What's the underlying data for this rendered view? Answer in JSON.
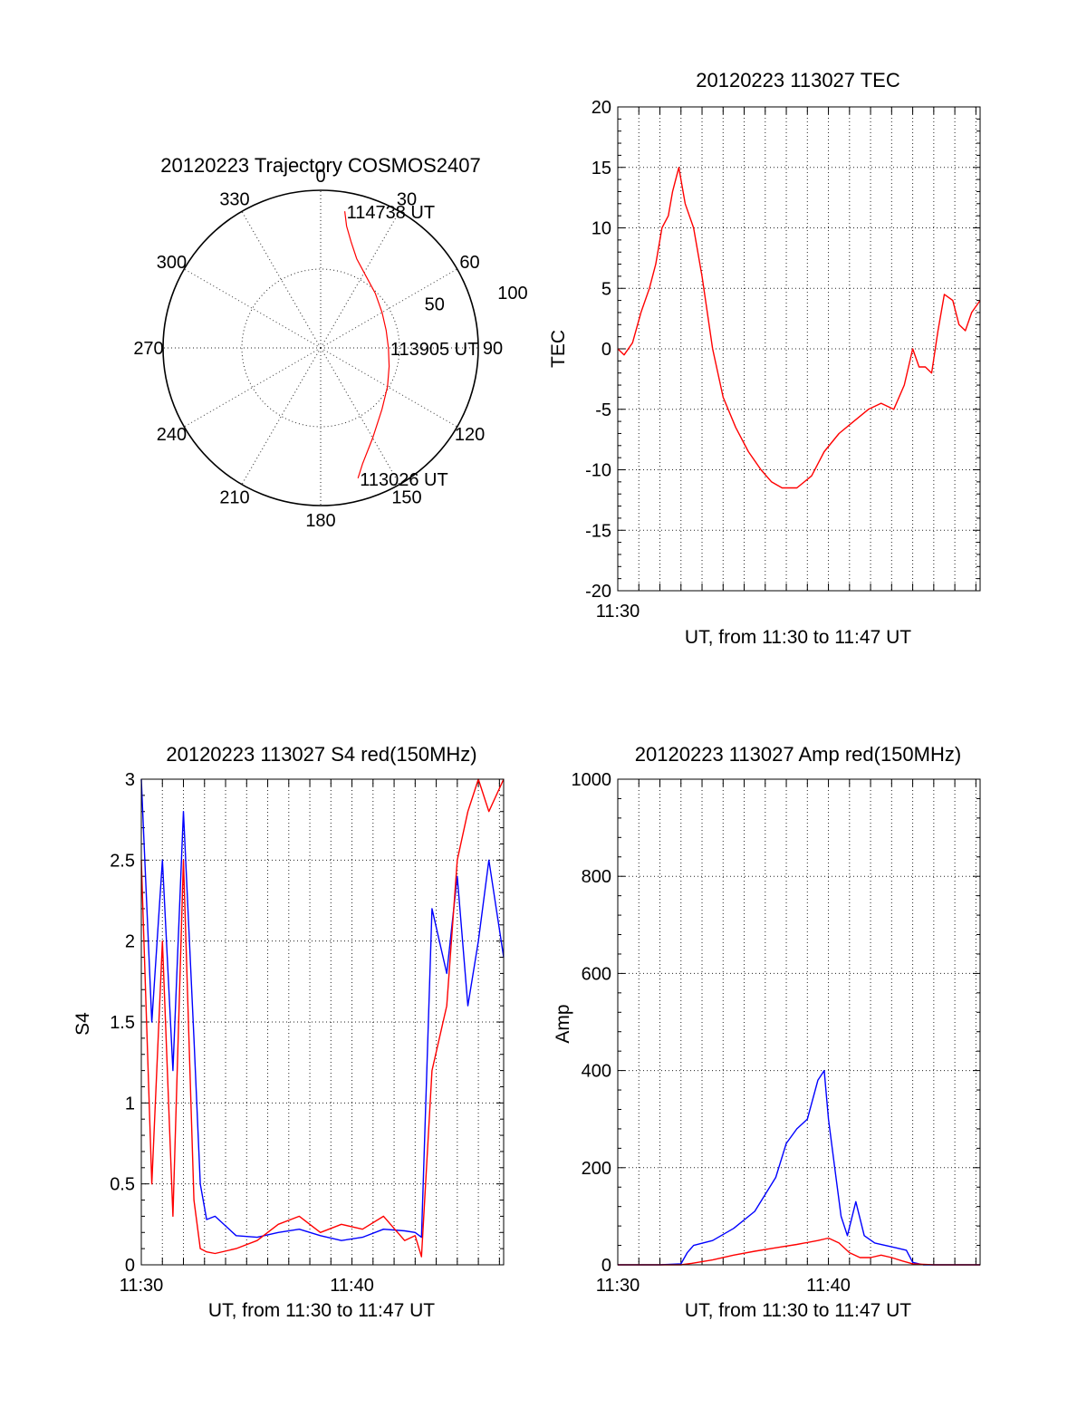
{
  "chart_data": [
    {
      "type": "polar",
      "title": "20120223 Trajectory COSMOS2407",
      "angle_ticks": [
        "0",
        "30",
        "60",
        "90",
        "120",
        "150",
        "180",
        "210",
        "240",
        "270",
        "300",
        "330"
      ],
      "radial_ticks": [
        "50",
        "100"
      ],
      "rlim": [
        0,
        100
      ],
      "series_color": "#ff0000",
      "trajectory": {
        "azimuth": [
          10,
          12,
          16,
          22,
          32,
          45,
          60,
          75,
          90,
          105,
          120,
          135,
          150,
          160,
          164
        ],
        "radius": [
          88,
          79,
          70,
          61,
          54,
          49,
          45,
          43,
          43,
          45,
          49,
          55,
          66,
          78,
          86
        ]
      },
      "annotations": [
        {
          "text": "114738 UT",
          "azimuth": 10,
          "radius": 88
        },
        {
          "text": "113905 UT",
          "azimuth": 90,
          "radius": 43
        },
        {
          "text": "113026 UT",
          "azimuth": 164,
          "radius": 86
        }
      ]
    },
    {
      "type": "line",
      "title": "20120223 113027 TEC",
      "xlabel": "UT, from 11:30 to 11:47 UT",
      "ylabel": "TEC",
      "xlim": [
        0,
        17.2
      ],
      "ylim": [
        -20,
        20
      ],
      "yticks": [
        "20",
        "15",
        "10",
        "5",
        "0",
        "-5",
        "-10",
        "-15",
        "-20"
      ],
      "xticks": [
        {
          "value": 0,
          "label": "11:30"
        }
      ],
      "series": [
        {
          "color": "#ff0000",
          "x": [
            0,
            0.3,
            0.7,
            1.1,
            1.5,
            1.8,
            2.1,
            2.4,
            2.6,
            2.9,
            3.2,
            3.6,
            4.0,
            4.5,
            5.0,
            5.6,
            6.2,
            6.8,
            7.3,
            7.8,
            8.5,
            9.2,
            9.8,
            10.5,
            11.2,
            11.9,
            12.5,
            13.1,
            13.6,
            14.0,
            14.3,
            14.6,
            14.9,
            15.2,
            15.5,
            15.9,
            16.2,
            16.5,
            16.8,
            17.2
          ],
          "y": [
            0,
            -0.5,
            0.5,
            3,
            5,
            7,
            10,
            11,
            13,
            15,
            12,
            10,
            6,
            0,
            -4,
            -6.5,
            -8.5,
            -10,
            -11,
            -11.5,
            -11.5,
            -10.5,
            -8.5,
            -7,
            -6,
            -5,
            -4.5,
            -5,
            -3,
            0,
            -1.5,
            -1.5,
            -2,
            1.5,
            4.5,
            4,
            2,
            1.5,
            3,
            4
          ]
        }
      ]
    },
    {
      "type": "line",
      "title": "20120223 113027 S4 red(150MHz)",
      "xlabel": "UT, from 11:30 to 11:47 UT",
      "ylabel": "S4",
      "xlim": [
        0,
        17.2
      ],
      "ylim": [
        0,
        3
      ],
      "yticks": [
        "3",
        "2.5",
        "2",
        "1.5",
        "1",
        "0.5",
        "0"
      ],
      "xticks": [
        {
          "value": 0,
          "label": "11:30"
        },
        {
          "value": 10,
          "label": "11:40"
        }
      ],
      "series": [
        {
          "color": "#0000ff",
          "x": [
            0,
            0.5,
            1,
            1.5,
            2,
            2.5,
            2.8,
            3.1,
            3.5,
            4.5,
            5.5,
            6.5,
            7.5,
            8.5,
            9.5,
            10.5,
            11.5,
            12.5,
            13,
            13.3,
            13.8,
            14.5,
            15,
            15.5,
            16,
            16.5,
            17.2
          ],
          "y": [
            3,
            1.5,
            2.5,
            1.2,
            2.8,
            1.4,
            0.5,
            0.28,
            0.3,
            0.18,
            0.17,
            0.2,
            0.22,
            0.18,
            0.15,
            0.17,
            0.22,
            0.21,
            0.2,
            0.17,
            2.2,
            1.8,
            2.4,
            1.6,
            2.0,
            2.5,
            1.9
          ]
        },
        {
          "color": "#ff0000",
          "x": [
            0,
            0.5,
            1,
            1.5,
            2,
            2.5,
            2.8,
            3.1,
            3.5,
            4.5,
            5.5,
            6.5,
            7.5,
            8.5,
            9.5,
            10.5,
            11.5,
            12.5,
            13,
            13.3,
            13.8,
            14.5,
            15,
            15.5,
            16,
            16.5,
            17.2
          ],
          "y": [
            2.5,
            0.5,
            2,
            0.3,
            2.5,
            0.4,
            0.1,
            0.08,
            0.07,
            0.1,
            0.15,
            0.25,
            0.3,
            0.2,
            0.25,
            0.22,
            0.3,
            0.15,
            0.18,
            0.05,
            1.2,
            1.6,
            2.5,
            2.8,
            3,
            2.8,
            3
          ]
        }
      ]
    },
    {
      "type": "line",
      "title": "20120223 113027 Amp red(150MHz)",
      "xlabel": "UT, from 11:30 to 11:47 UT",
      "ylabel": "Amp",
      "xlim": [
        0,
        17.2
      ],
      "ylim": [
        0,
        1000
      ],
      "yticks": [
        "1000",
        "800",
        "600",
        "400",
        "200",
        "0"
      ],
      "xticks": [
        {
          "value": 0,
          "label": "11:30"
        },
        {
          "value": 10,
          "label": "11:40"
        }
      ],
      "series": [
        {
          "color": "#0000ff",
          "x": [
            0,
            1,
            2,
            3,
            3.3,
            3.6,
            4.5,
            5.5,
            6.5,
            7.5,
            8.0,
            8.5,
            9.0,
            9.5,
            9.8,
            10.0,
            10.3,
            10.6,
            10.9,
            11.3,
            11.7,
            12.2,
            12.7,
            13.2,
            13.7,
            14.0,
            14.5,
            15.5,
            17.2
          ],
          "y": [
            0,
            0,
            0,
            2,
            25,
            40,
            50,
            75,
            110,
            180,
            250,
            280,
            300,
            380,
            400,
            300,
            200,
            100,
            60,
            130,
            60,
            45,
            40,
            35,
            30,
            5,
            0,
            0,
            0
          ]
        },
        {
          "color": "#ff0000",
          "x": [
            0,
            3,
            3.5,
            4.5,
            5.5,
            6.5,
            7.5,
            8.5,
            9.5,
            10.0,
            10.5,
            11.0,
            11.5,
            12,
            12.5,
            13.0,
            13.5,
            14.0,
            15,
            17.2
          ],
          "y": [
            0,
            0,
            3,
            10,
            20,
            28,
            35,
            42,
            50,
            55,
            45,
            25,
            15,
            15,
            20,
            15,
            8,
            2,
            0,
            0
          ]
        }
      ]
    }
  ]
}
